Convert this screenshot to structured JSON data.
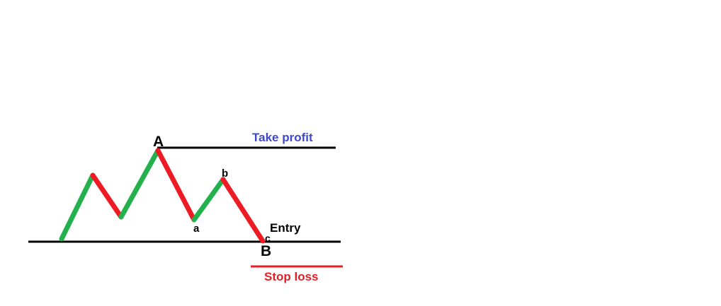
{
  "labels": {
    "point_A": "A",
    "point_B": "B",
    "point_a": "a",
    "point_b": "b",
    "point_c": "c",
    "take_profit": "Take profit",
    "entry": "Entry",
    "stop_loss": "Stop loss"
  },
  "colors": {
    "up_leg": "#22b14c",
    "down_leg": "#ed1c24",
    "level_line": "#000000",
    "take_profit_text": "#3f48cc",
    "stop_loss_text": "#ed1c24",
    "stop_loss_line": "#ed1c24",
    "label_text": "#000000"
  }
}
